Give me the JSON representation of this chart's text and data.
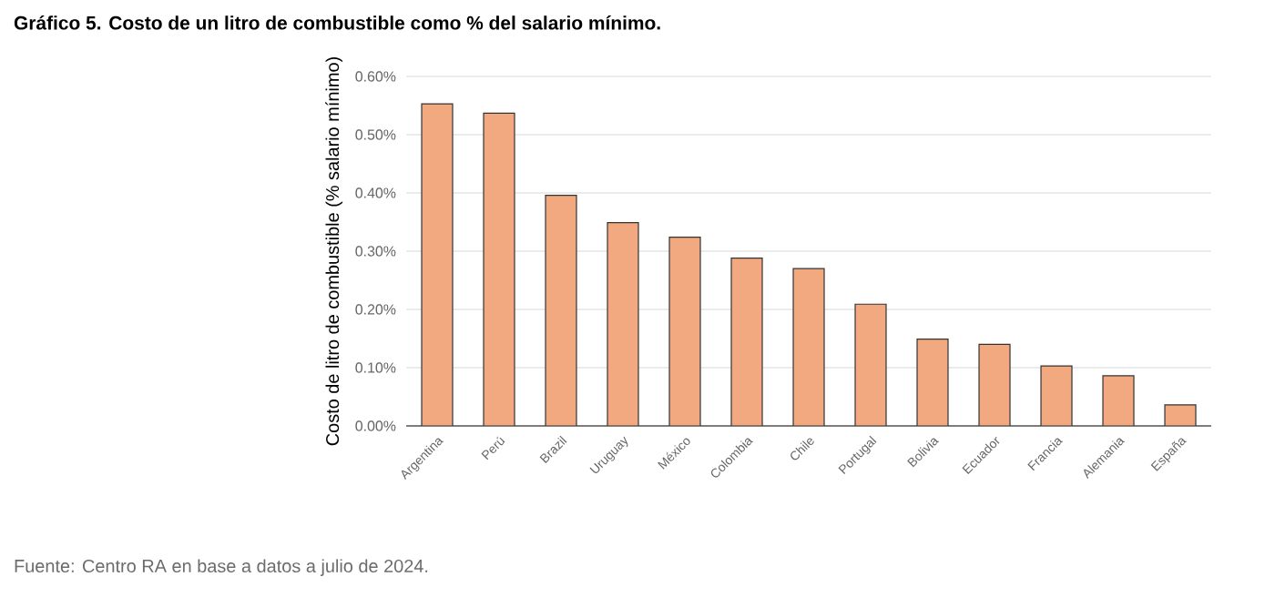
{
  "chart_data": {
    "type": "bar",
    "title": "Gráfico 5. Costo de un litro de combustible como % del salario mínimo.",
    "ylabel": "Costo de litro de combustible (% salario mínimo)",
    "categories": [
      "Argentina",
      "Perú",
      "Brazil",
      "Uruguay",
      "México",
      "Colombia",
      "Chile",
      "Portugal",
      "Bolivia",
      "Ecuador",
      "Francia",
      "Alemania",
      "España"
    ],
    "values": [
      0.553,
      0.537,
      0.396,
      0.349,
      0.324,
      0.288,
      0.27,
      0.209,
      0.149,
      0.14,
      0.103,
      0.086,
      0.036
    ],
    "color": "#f2a97f",
    "ylim": [
      0,
      0.6
    ],
    "yticks": [
      {
        "value": 0,
        "label": "0.00%"
      },
      {
        "value": 0.1,
        "label": "0.10%"
      },
      {
        "value": 0.2,
        "label": "0.20%"
      },
      {
        "value": 0.3,
        "label": "0.30%"
      },
      {
        "value": 0.4,
        "label": "0.40%"
      },
      {
        "value": 0.5,
        "label": "0.50%"
      },
      {
        "value": 0.6,
        "label": "0.60%"
      }
    ],
    "grid": "y",
    "annotations": [
      "Fuente: Centro RA en base a datos a julio de 2024."
    ]
  }
}
